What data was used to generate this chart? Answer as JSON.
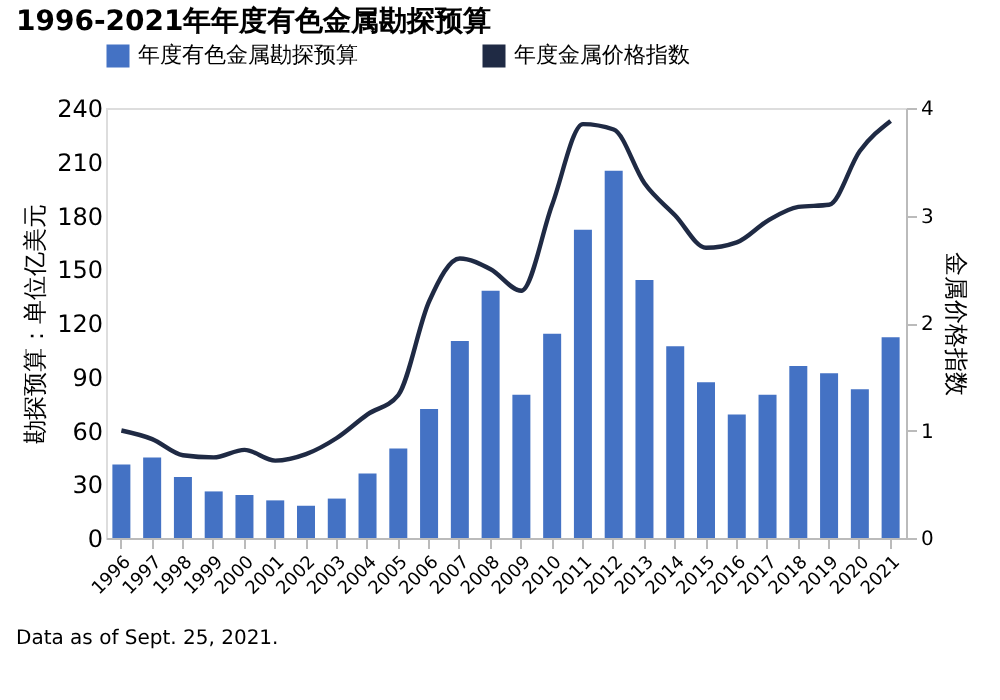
{
  "chart_data": {
    "type": "bar",
    "title": "1996-2021年年度有色金属勘探预算",
    "categories": [
      "1996",
      "1997",
      "1998",
      "1999",
      "2000",
      "2001",
      "2002",
      "2003",
      "2004",
      "2005",
      "2006",
      "2007",
      "2008",
      "2009",
      "2010",
      "2011",
      "2012",
      "2013",
      "2014",
      "2015",
      "2016",
      "2017",
      "2018",
      "2019",
      "2020",
      "2021"
    ],
    "series": [
      {
        "name": "年度有色金属勘探预算",
        "color": "#4472c4",
        "values": [
          41,
          45,
          34,
          26,
          24,
          21,
          18,
          22,
          36,
          50,
          72,
          110,
          138,
          80,
          114,
          172,
          205,
          144,
          107,
          87,
          69,
          80,
          96,
          92,
          83,
          112
        ]
      },
      {
        "name": "年度金属价格指数",
        "color": "#1f2a44",
        "type": "line",
        "axis": "y2",
        "values": [
          1.0,
          0.92,
          0.77,
          0.75,
          0.82,
          0.72,
          0.78,
          0.93,
          1.15,
          1.33,
          2.2,
          2.6,
          2.5,
          2.3,
          3.1,
          3.85,
          3.8,
          3.3,
          3.0,
          2.7,
          2.75,
          2.95,
          3.08,
          3.1,
          3.6,
          3.88
        ]
      }
    ],
    "ylabel": "勘探预算：单位亿美元",
    "y2label": "金属价格指数",
    "ylim": [
      0,
      240
    ],
    "yticks": [
      0,
      30,
      60,
      90,
      120,
      150,
      180,
      210,
      240
    ],
    "y2lim": [
      0,
      4
    ],
    "y2ticks": [
      0,
      1,
      2,
      3,
      4
    ],
    "grid": false,
    "legend": "top",
    "annotations": [
      "Data as of Sept. 25, 2021."
    ]
  }
}
